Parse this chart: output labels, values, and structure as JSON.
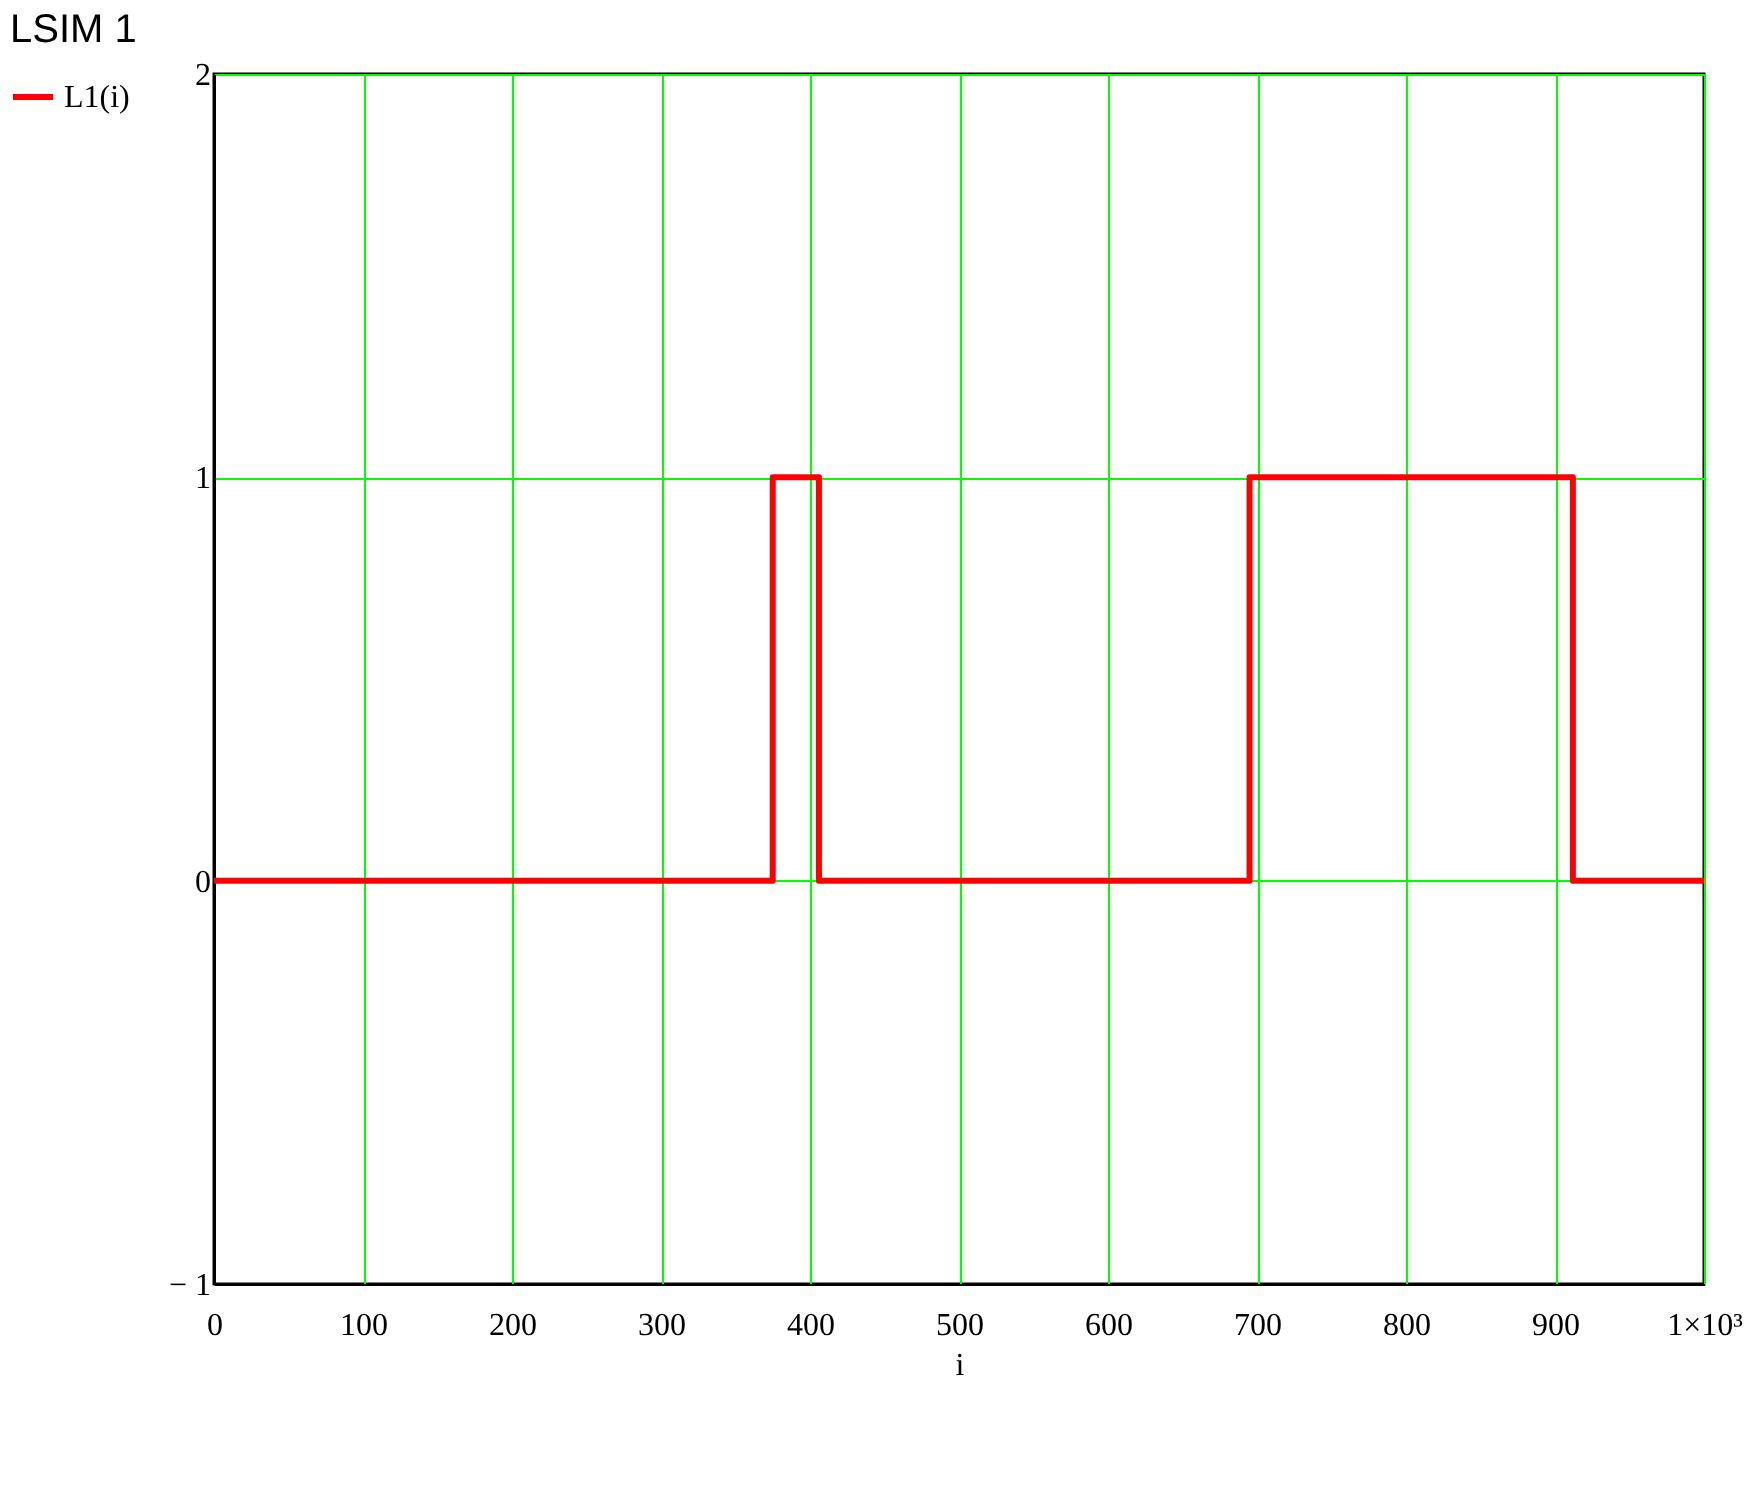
{
  "chart_data": {
    "type": "step",
    "title": "LSIM 1",
    "xlabel": "i",
    "x": [
      0,
      375,
      406,
      695,
      912,
      1000
    ],
    "series": [
      {
        "name": "L1(i)",
        "color": "#ff0000",
        "values": [
          0,
          1,
          0,
          1,
          0,
          0
        ]
      }
    ],
    "xlim": [
      0,
      1000
    ],
    "xticks": [
      0,
      100,
      200,
      300,
      400,
      500,
      600,
      700,
      800,
      900,
      {
        "value": 1000,
        "label": "1×10³"
      }
    ],
    "ylim": [
      -1,
      2
    ],
    "yticks": [
      {
        "value": -1,
        "label": "− 1"
      },
      0,
      1,
      2
    ],
    "grid": true,
    "legend": "left",
    "line_style": "solid"
  }
}
